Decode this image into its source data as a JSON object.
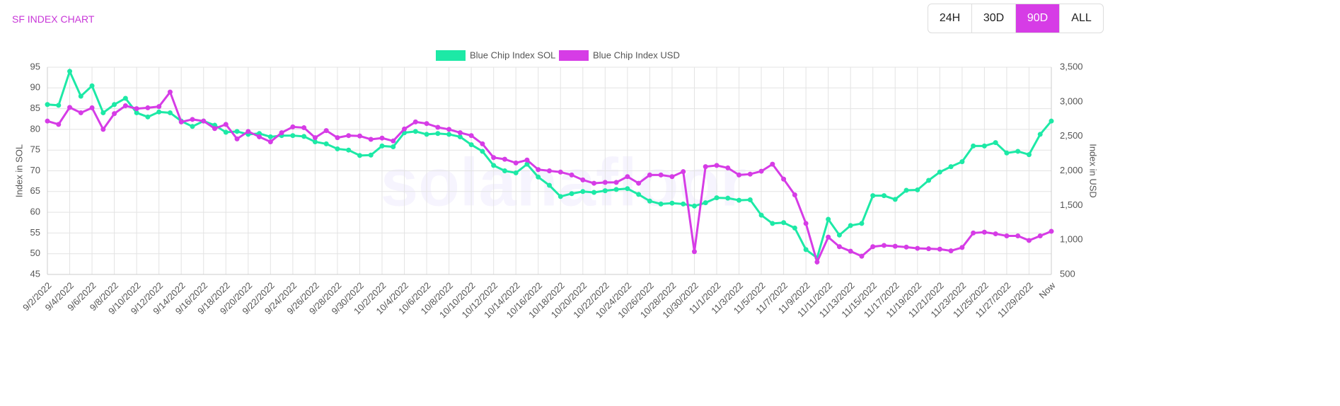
{
  "header": {
    "title": "SF INDEX CHART",
    "buttons": [
      "24H",
      "30D",
      "90D",
      "ALL"
    ],
    "active": "90D"
  },
  "chart_data": {
    "type": "line",
    "watermark": "solanafloor",
    "categories": [
      "9/2/2022",
      null,
      "9/4/2022",
      null,
      "9/6/2022",
      null,
      "9/8/2022",
      null,
      "9/10/2022",
      null,
      "9/12/2022",
      null,
      "9/14/2022",
      null,
      "9/16/2022",
      null,
      "9/18/2022",
      null,
      "9/20/2022",
      null,
      "9/22/2022",
      null,
      "9/24/2022",
      null,
      "9/26/2022",
      null,
      "9/28/2022",
      null,
      "9/30/2022",
      null,
      "10/2/2022",
      null,
      "10/4/2022",
      null,
      "10/6/2022",
      null,
      "10/8/2022",
      null,
      "10/10/2022",
      null,
      "10/12/2022",
      null,
      "10/14/2022",
      null,
      "10/16/2022",
      null,
      "10/18/2022",
      null,
      "10/20/2022",
      null,
      "10/22/2022",
      null,
      "10/24/2022",
      null,
      "10/26/2022",
      null,
      "10/28/2022",
      null,
      "10/30/2022",
      null,
      "11/1/2022",
      null,
      "11/3/2022",
      null,
      "11/5/2022",
      null,
      "11/7/2022",
      null,
      "11/9/2022",
      null,
      "11/11/2022",
      null,
      "11/13/2022",
      null,
      "11/15/2022",
      null,
      "11/17/2022",
      null,
      "11/19/2022",
      null,
      "11/21/2022",
      null,
      "11/23/2022",
      null,
      "11/25/2022",
      null,
      "11/27/2022",
      null,
      "11/29/2022",
      null,
      "Now"
    ],
    "series": [
      {
        "name": "Blue Chip Index SOL",
        "color": "#1de9a6",
        "axis": "y",
        "values": [
          86,
          85.8,
          94,
          88,
          90.5,
          84,
          86,
          87.5,
          84,
          83,
          84.2,
          84,
          82,
          80.7,
          82,
          81,
          79.3,
          79.5,
          78.8,
          79,
          78.2,
          78.5,
          78.5,
          78.3,
          77,
          76.5,
          75.3,
          75,
          73.7,
          73.8,
          76,
          75.8,
          79.2,
          79.5,
          78.8,
          79,
          78.8,
          78.2,
          76.3,
          74.7,
          71.3,
          70,
          69.5,
          71.6,
          68.5,
          66.5,
          63.8,
          64.5,
          65,
          64.8,
          65.2,
          65.5,
          65.7,
          64.3,
          62.7,
          62,
          62.2,
          62,
          61.5,
          62.3,
          63.5,
          63.4,
          62.9,
          63,
          59.3,
          57.3,
          57.5,
          56.2,
          51,
          49,
          58.3,
          54.5,
          56.8,
          57.3,
          64,
          64,
          63.1,
          65.3,
          65.4,
          67.7,
          69.7,
          71,
          72.2,
          76,
          76,
          76.8,
          74.3,
          74.7,
          73.9,
          78.8,
          82
        ]
      },
      {
        "name": "Blue Chip Index USD",
        "color": "#d63ce6",
        "axis": "y2",
        "values": [
          2720,
          2672,
          2918,
          2840,
          2912,
          2600,
          2828,
          2942,
          2900,
          2912,
          2930,
          3140,
          2708,
          2744,
          2720,
          2612,
          2672,
          2462,
          2570,
          2492,
          2420,
          2552,
          2636,
          2624,
          2480,
          2582,
          2480,
          2510,
          2504,
          2456,
          2474,
          2432,
          2606,
          2708,
          2684,
          2630,
          2600,
          2552,
          2510,
          2390,
          2192,
          2168,
          2114,
          2156,
          2018,
          2000,
          1982,
          1940,
          1868,
          1820,
          1832,
          1832,
          1916,
          1820,
          1940,
          1940,
          1916,
          1988,
          830,
          2060,
          2078,
          2042,
          1940,
          1952,
          1994,
          2096,
          1880,
          1652,
          1238,
          680,
          1040,
          902,
          836,
          764,
          902,
          920,
          908,
          896,
          878,
          872,
          866,
          842,
          890,
          1100,
          1112,
          1088,
          1058,
          1058,
          992,
          1058,
          1124
        ]
      }
    ],
    "ylabel": "Index in SOL",
    "y2label": "Index in USD",
    "ylim": [
      45,
      95
    ],
    "yticks": [
      45,
      50,
      55,
      60,
      65,
      70,
      75,
      80,
      85,
      90,
      95
    ],
    "y2lim": [
      500,
      3500
    ],
    "y2ticks": [
      500,
      {
        "value": 1000,
        "label": "1,000"
      },
      {
        "value": 1500,
        "label": "1,500"
      },
      {
        "value": 2000,
        "label": "2,000"
      },
      {
        "value": 2500,
        "label": "2,500"
      },
      {
        "value": 3000,
        "label": "3,000"
      },
      {
        "value": 3500,
        "label": "3,500"
      }
    ],
    "grid": true,
    "legend": "top"
  }
}
